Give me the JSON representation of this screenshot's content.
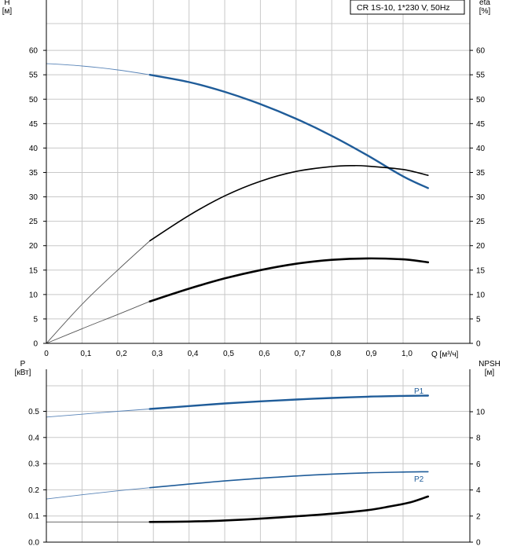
{
  "title": "CR 1S-10, 1*230 V, 50Hz",
  "colors": {
    "blue": "#1f5c99",
    "black": "#000000",
    "thin": "#777777",
    "grid": "#c8c8c8"
  },
  "chart_data": [
    {
      "type": "line",
      "title": "CR 1S-10, 1*230 V, 50Hz",
      "xlabel": "Q [м³/ч]",
      "ylabel_left": "H\n[м]",
      "ylabel_right": "eta\n[%]",
      "xlim": [
        0,
        1.1
      ],
      "ylim": [
        0,
        65
      ],
      "x_ticks": [
        "0",
        "0,1",
        "0,2",
        "0,3",
        "0,4",
        "0,5",
        "0,6",
        "0,7",
        "0,8",
        "0,9",
        "1,0"
      ],
      "y_ticks_left": [
        "0",
        "5",
        "10",
        "15",
        "20",
        "25",
        "30",
        "35",
        "40",
        "45",
        "50",
        "55",
        "60"
      ],
      "y_ticks_right": [
        "0",
        "5",
        "10",
        "15",
        "20",
        "25",
        "30",
        "35",
        "40",
        "45",
        "50",
        "55",
        "60"
      ],
      "grid": true,
      "series": [
        {
          "role": "head",
          "color": "#1f5c99",
          "points": [
            [
              0,
              57.3
            ],
            [
              0.1,
              56.8
            ],
            [
              0.2,
              56.0
            ],
            [
              0.29,
              55.0
            ],
            [
              0.4,
              53.5
            ],
            [
              0.5,
              51.5
            ],
            [
              0.6,
              49.0
            ],
            [
              0.7,
              46.0
            ],
            [
              0.8,
              42.5
            ],
            [
              0.9,
              38.5
            ],
            [
              1.0,
              34.2
            ],
            [
              1.07,
              31.8
            ]
          ],
          "duty_start": 0.29
        },
        {
          "role": "efficiency",
          "color": "#000000",
          "points": [
            [
              0,
              0
            ],
            [
              0.1,
              8.0
            ],
            [
              0.2,
              15.0
            ],
            [
              0.29,
              21.0
            ],
            [
              0.4,
              26.2
            ],
            [
              0.5,
              30.2
            ],
            [
              0.6,
              33.2
            ],
            [
              0.7,
              35.2
            ],
            [
              0.8,
              36.2
            ],
            [
              0.86,
              36.4
            ],
            [
              0.9,
              36.3
            ],
            [
              1.0,
              35.6
            ],
            [
              1.07,
              34.4
            ]
          ],
          "duty_start": 0.29
        },
        {
          "role": "efficiency-bold",
          "color": "#000000",
          "points": [
            [
              0,
              0
            ],
            [
              0.1,
              3.0
            ],
            [
              0.2,
              5.9
            ],
            [
              0.29,
              8.6
            ],
            [
              0.4,
              11.2
            ],
            [
              0.5,
              13.3
            ],
            [
              0.6,
              15.0
            ],
            [
              0.7,
              16.3
            ],
            [
              0.8,
              17.1
            ],
            [
              0.9,
              17.4
            ],
            [
              1.0,
              17.2
            ],
            [
              1.07,
              16.6
            ]
          ],
          "duty_start": 0.29
        }
      ]
    },
    {
      "type": "line",
      "xlabel": "",
      "ylabel_left": "P\n[кВт]",
      "ylabel_right": "NPSH\n[м]",
      "xlim": [
        0,
        1.1
      ],
      "ylim": [
        0,
        0.6
      ],
      "ylim_right": [
        0,
        12
      ],
      "y_ticks_left": [
        "0.0",
        "0.1",
        "0.2",
        "0.3",
        "0.4",
        "0.5"
      ],
      "y_ticks_right": [
        "0",
        "2",
        "4",
        "6",
        "8",
        "10"
      ],
      "grid": true,
      "series": [
        {
          "name": "P1",
          "color": "#1f5c99",
          "points": [
            [
              0,
              0.478
            ],
            [
              0.1,
              0.489
            ],
            [
              0.2,
              0.5
            ],
            [
              0.29,
              0.509
            ],
            [
              0.4,
              0.52
            ],
            [
              0.5,
              0.53
            ],
            [
              0.6,
              0.538
            ],
            [
              0.7,
              0.545
            ],
            [
              0.8,
              0.551
            ],
            [
              0.9,
              0.556
            ],
            [
              1.0,
              0.559
            ],
            [
              1.07,
              0.56
            ]
          ],
          "duty_start": 0.29
        },
        {
          "name": "P2",
          "color": "#1f5c99",
          "points": [
            [
              0,
              0.165
            ],
            [
              0.1,
              0.181
            ],
            [
              0.2,
              0.196
            ],
            [
              0.29,
              0.208
            ],
            [
              0.4,
              0.222
            ],
            [
              0.5,
              0.234
            ],
            [
              0.6,
              0.244
            ],
            [
              0.7,
              0.253
            ],
            [
              0.8,
              0.26
            ],
            [
              0.9,
              0.265
            ],
            [
              1.0,
              0.268
            ],
            [
              1.07,
              0.269
            ]
          ],
          "duty_start": 0.29
        },
        {
          "role": "npsh",
          "color": "#000000",
          "axis": "right",
          "points": [
            [
              0,
              1.55
            ],
            [
              0.2,
              1.55
            ],
            [
              0.29,
              1.55
            ],
            [
              0.4,
              1.58
            ],
            [
              0.5,
              1.66
            ],
            [
              0.6,
              1.8
            ],
            [
              0.7,
              1.98
            ],
            [
              0.8,
              2.18
            ],
            [
              0.9,
              2.45
            ],
            [
              0.96,
              2.72
            ],
            [
              1.02,
              3.05
            ],
            [
              1.07,
              3.5
            ]
          ],
          "duty_start": 0.29
        }
      ]
    }
  ]
}
